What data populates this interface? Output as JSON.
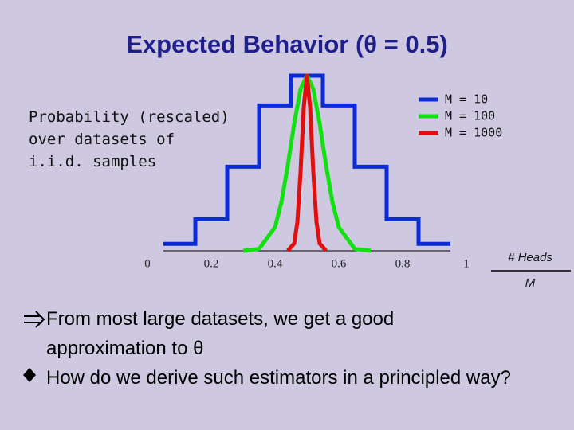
{
  "title": "Expected Behavior (θ = 0.5)",
  "bullets": [
    "From most large datasets, we get a good approximation to θ",
    "How do we derive such estimators in a principled way?"
  ],
  "chart_data": {
    "type": "line",
    "y_label": "Probability (rescaled) over datasets of i.i.d. samples",
    "x_label_numerator": "# Heads",
    "x_label_denominator": "M",
    "xlim": [
      0,
      1
    ],
    "xticks": [
      0,
      0.2,
      0.4,
      0.6,
      0.8,
      1
    ],
    "ylim": [
      0,
      1
    ],
    "series": [
      {
        "name": "M = 10",
        "color": "#0a2bd6",
        "style": "step",
        "x": [
          0.1,
          0.2,
          0.3,
          0.4,
          0.5,
          0.6,
          0.7,
          0.8,
          0.9
        ],
        "values": [
          0.04,
          0.18,
          0.48,
          0.83,
          1,
          0.83,
          0.48,
          0.18,
          0.04
        ]
      },
      {
        "name": "M = 100",
        "color": "#12e012",
        "style": "curve",
        "x": [
          0.3,
          0.35,
          0.4,
          0.42,
          0.44,
          0.46,
          0.48,
          0.5,
          0.52,
          0.54,
          0.56,
          0.58,
          0.6,
          0.65,
          0.7
        ],
        "values": [
          0,
          0.011,
          0.135,
          0.278,
          0.487,
          0.726,
          0.923,
          1,
          0.923,
          0.726,
          0.487,
          0.278,
          0.135,
          0.011,
          0
        ]
      },
      {
        "name": "M = 1000",
        "color": "#e01010",
        "style": "curve",
        "x": [
          0.44,
          0.46,
          0.47,
          0.48,
          0.49,
          0.5,
          0.51,
          0.52,
          0.53,
          0.54,
          0.56
        ],
        "values": [
          0.0007,
          0.041,
          0.165,
          0.449,
          0.819,
          1,
          0.819,
          0.449,
          0.165,
          0.041,
          0.0007
        ]
      }
    ]
  }
}
